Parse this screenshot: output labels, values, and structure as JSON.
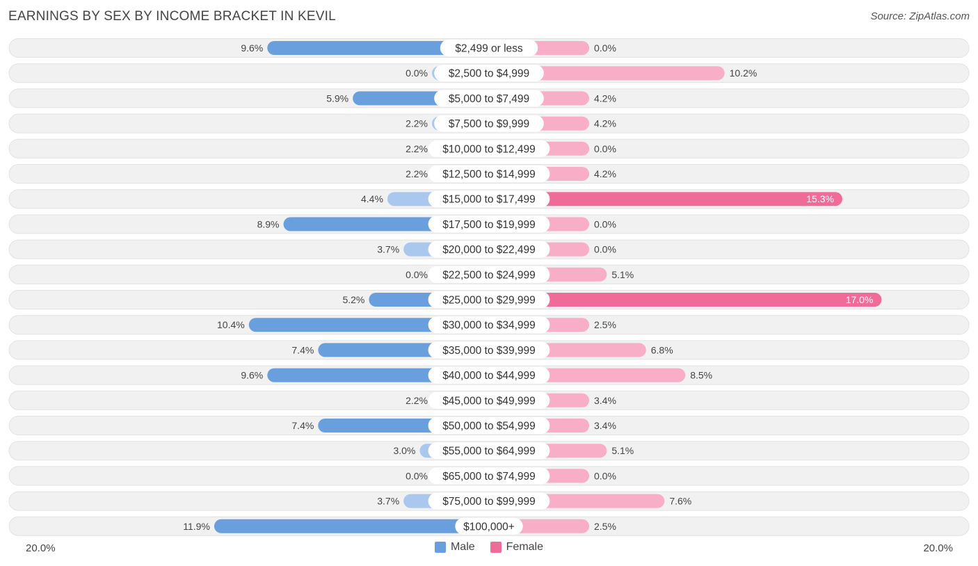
{
  "title": "EARNINGS BY SEX BY INCOME BRACKET IN KEVIL",
  "source": "Source: ZipAtlas.com",
  "axis": {
    "left_label": "20.0%",
    "right_label": "20.0%"
  },
  "legend": {
    "male_label": "Male",
    "female_label": "Female"
  },
  "colors": {
    "male_strong": "#6a9fde",
    "male_light": "#aac8ee",
    "female_strong": "#f06c98",
    "female_light": "#f7aec6",
    "row_bg": "#f1f1f1",
    "label_bg": "#ffffff"
  },
  "chart_data": {
    "type": "bar",
    "orientation": "horizontal-diverging",
    "title": "EARNINGS BY SEX BY INCOME BRACKET IN KEVIL",
    "xlim": [
      -20,
      20
    ],
    "categories": [
      "$2,499 or less",
      "$2,500 to $4,999",
      "$5,000 to $7,499",
      "$7,500 to $9,999",
      "$10,000 to $12,499",
      "$12,500 to $14,999",
      "$15,000 to $17,499",
      "$17,500 to $19,999",
      "$20,000 to $22,499",
      "$22,500 to $24,999",
      "$25,000 to $29,999",
      "$30,000 to $34,999",
      "$35,000 to $39,999",
      "$40,000 to $44,999",
      "$45,000 to $49,999",
      "$50,000 to $54,999",
      "$55,000 to $64,999",
      "$65,000 to $74,999",
      "$75,000 to $99,999",
      "$100,000+"
    ],
    "series": [
      {
        "name": "Male",
        "values": [
          9.6,
          0.0,
          5.9,
          2.2,
          2.2,
          2.2,
          4.4,
          8.9,
          3.7,
          0.0,
          5.2,
          10.4,
          7.4,
          9.6,
          2.2,
          7.4,
          3.0,
          0.0,
          3.7,
          11.9
        ],
        "labels": [
          "9.6%",
          "0.0%",
          "5.9%",
          "2.2%",
          "2.2%",
          "2.2%",
          "4.4%",
          "8.9%",
          "3.7%",
          "0.0%",
          "5.2%",
          "10.4%",
          "7.4%",
          "9.6%",
          "2.2%",
          "7.4%",
          "3.0%",
          "0.0%",
          "3.7%",
          "11.9%"
        ]
      },
      {
        "name": "Female",
        "values": [
          0.0,
          10.2,
          4.2,
          4.2,
          0.0,
          4.2,
          15.3,
          0.0,
          0.0,
          5.1,
          17.0,
          2.5,
          6.8,
          8.5,
          3.4,
          3.4,
          5.1,
          0.0,
          7.6,
          2.5
        ],
        "labels": [
          "0.0%",
          "10.2%",
          "4.2%",
          "4.2%",
          "0.0%",
          "4.2%",
          "15.3%",
          "0.0%",
          "0.0%",
          "5.1%",
          "17.0%",
          "2.5%",
          "6.8%",
          "8.5%",
          "3.4%",
          "3.4%",
          "5.1%",
          "0.0%",
          "7.6%",
          "2.5%"
        ]
      }
    ]
  }
}
